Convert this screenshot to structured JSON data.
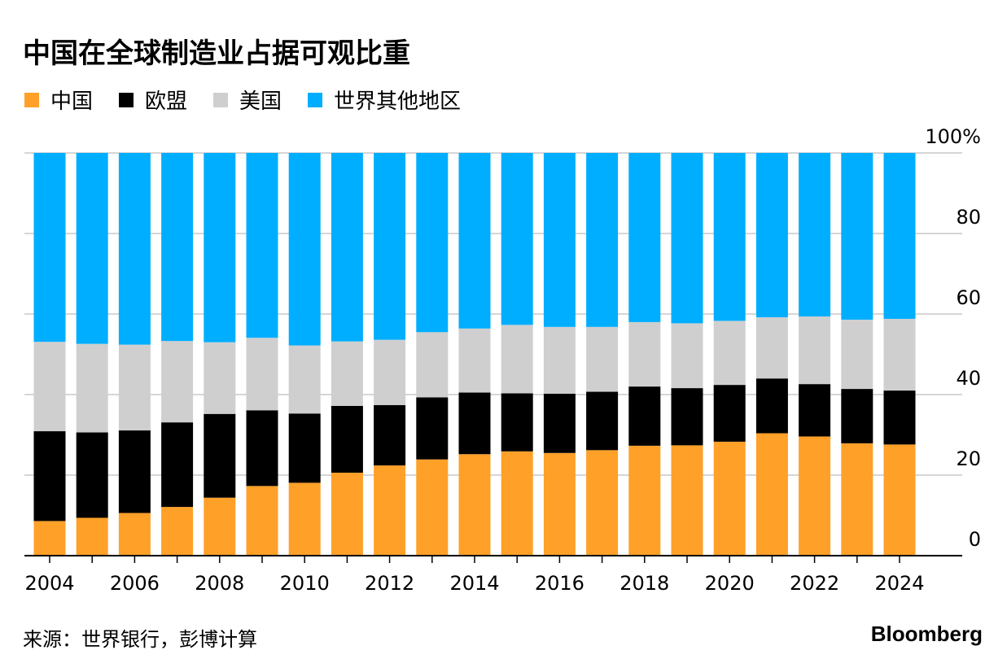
{
  "title": "中国在全球制造业占据可观比重",
  "source": "来源：世界银行，彭博计算",
  "brand": "Bloomberg",
  "colors": {
    "china": "#FFA028",
    "eu": "#000000",
    "us": "#CFCFCF",
    "row": "#00AEFF",
    "grid": "#C8C8C8",
    "axis": "#000000"
  },
  "chart_data": {
    "type": "bar",
    "stacked": true,
    "title": "中国在全球制造业占据可观比重",
    "ylim": [
      0,
      100
    ],
    "y_ticks": [
      "0",
      "20",
      "40",
      "60",
      "80",
      "100%"
    ],
    "y_tick_values": [
      0,
      20,
      40,
      60,
      80,
      100
    ],
    "y_axis_side": "right",
    "grid": true,
    "legend_position": "top-left",
    "categories": [
      2004,
      2005,
      2006,
      2007,
      2008,
      2009,
      2010,
      2011,
      2012,
      2013,
      2014,
      2015,
      2016,
      2017,
      2018,
      2019,
      2020,
      2021,
      2022,
      2023,
      2024
    ],
    "x_tick_labels": [
      "2004",
      "2006",
      "2008",
      "2010",
      "2012",
      "2014",
      "2016",
      "2018",
      "2020",
      "2022",
      "2024"
    ],
    "series": [
      {
        "name": "中国",
        "color": "#FFA028",
        "values": [
          8.6,
          9.4,
          10.6,
          12.1,
          14.4,
          17.3,
          18.1,
          20.6,
          22.4,
          23.9,
          25.2,
          25.9,
          25.5,
          26.2,
          27.3,
          27.4,
          28.3,
          30.4,
          29.6,
          27.9,
          27.6
        ]
      },
      {
        "name": "欧盟",
        "color": "#000000",
        "values": [
          22.3,
          21.2,
          20.5,
          21.0,
          20.8,
          18.8,
          17.2,
          16.6,
          15.0,
          15.4,
          15.3,
          14.4,
          14.7,
          14.5,
          14.7,
          14.2,
          14.1,
          13.6,
          13.0,
          13.5,
          13.4
        ]
      },
      {
        "name": "美国",
        "color": "#CFCFCF",
        "values": [
          22.2,
          22.0,
          21.3,
          20.2,
          17.8,
          18.0,
          16.9,
          16.0,
          16.2,
          16.2,
          15.9,
          17.0,
          16.6,
          16.1,
          16.0,
          16.1,
          15.9,
          15.2,
          16.8,
          17.2,
          17.8
        ]
      },
      {
        "name": "世界其他地区",
        "color": "#00AEFF",
        "values": [
          46.9,
          47.4,
          47.6,
          46.7,
          47.0,
          45.9,
          47.8,
          46.8,
          46.4,
          44.5,
          43.6,
          42.7,
          43.2,
          43.2,
          42.0,
          42.3,
          41.7,
          40.8,
          40.6,
          41.4,
          41.2
        ]
      }
    ]
  }
}
